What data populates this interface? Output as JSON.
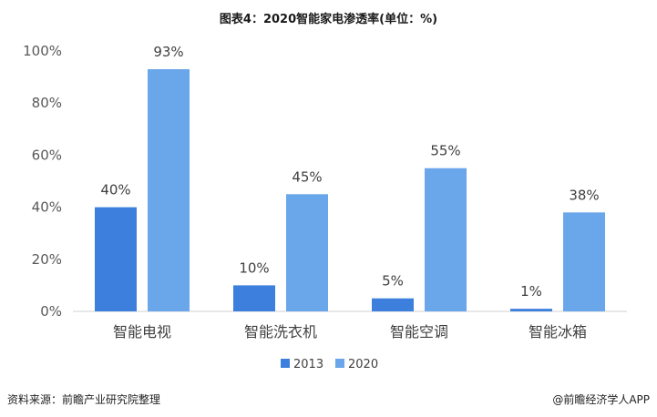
{
  "chart_data": {
    "type": "bar",
    "title": "图表4：2020智能家电渗透率(单位：%)",
    "categories": [
      "智能电视",
      "智能洗衣机",
      "智能空调",
      "智能冰箱"
    ],
    "series": [
      {
        "name": "2013",
        "values": [
          40,
          10,
          5,
          1
        ],
        "labels": [
          "40%",
          "10%",
          "5%",
          "1%"
        ],
        "color": "#3d7fdc"
      },
      {
        "name": "2020",
        "values": [
          93,
          45,
          55,
          38
        ],
        "labels": [
          "93%",
          "45%",
          "55%",
          "38%"
        ],
        "color": "#6aa6ea"
      }
    ],
    "yticks": [
      "0%",
      "20%",
      "40%",
      "60%",
      "80%",
      "100%"
    ],
    "ylim": [
      0,
      100
    ],
    "grid": false,
    "legend": "bottom"
  },
  "footer": {
    "source": "资料来源：前瞻产业研究院整理",
    "brand": "@前瞻经济学人APP"
  }
}
